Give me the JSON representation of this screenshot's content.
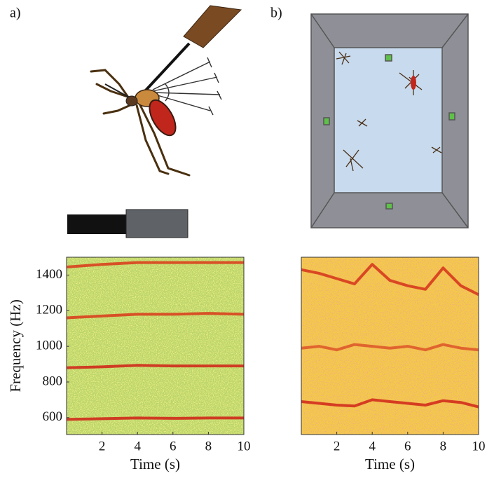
{
  "panels": [
    {
      "label": "a)"
    },
    {
      "label": "b)"
    }
  ],
  "chart_data": [
    {
      "type": "spectrogram",
      "xlabel": "Time (s)",
      "ylabel": "Frequency (Hz)",
      "xlim": [
        0,
        10
      ],
      "ylim": [
        505,
        1500
      ],
      "xticks": [
        2,
        4,
        6,
        8,
        10
      ],
      "yticks": [
        600,
        800,
        1000,
        1200,
        1400
      ],
      "background": "#b9d46c",
      "speckle": "#f2e83a",
      "x": [
        0,
        2,
        4,
        6,
        8,
        10
      ],
      "series": [
        {
          "color": "#cf2a1b",
          "values": [
            590,
            594,
            598,
            596,
            598,
            598
          ]
        },
        {
          "color": "#cf2a1b",
          "values": [
            880,
            885,
            893,
            890,
            890,
            890
          ]
        },
        {
          "color": "#d9401e",
          "values": [
            1160,
            1170,
            1180,
            1180,
            1185,
            1180
          ]
        },
        {
          "color": "#d9401e",
          "values": [
            1445,
            1460,
            1470,
            1470,
            1470,
            1470
          ]
        }
      ]
    },
    {
      "type": "spectrogram",
      "xlabel": "Time (s)",
      "xlim": [
        0,
        10
      ],
      "ylim": [
        505,
        1500
      ],
      "xticks": [
        2,
        4,
        6,
        8,
        10
      ],
      "background": "#f3cb48",
      "speckle": "#e2603a",
      "x": [
        0,
        1,
        2,
        3,
        4,
        5,
        6,
        7,
        8,
        9,
        10
      ],
      "series": [
        {
          "color": "#d22e1c",
          "values": [
            690,
            680,
            670,
            665,
            700,
            690,
            680,
            670,
            695,
            685,
            660
          ]
        },
        {
          "color": "#de5a2a",
          "values": [
            990,
            1000,
            980,
            1010,
            1000,
            990,
            1000,
            980,
            1010,
            990,
            980
          ]
        },
        {
          "color": "#d63a1e",
          "values": [
            1430,
            1410,
            1380,
            1350,
            1460,
            1370,
            1340,
            1320,
            1440,
            1340,
            1290
          ]
        }
      ]
    }
  ]
}
